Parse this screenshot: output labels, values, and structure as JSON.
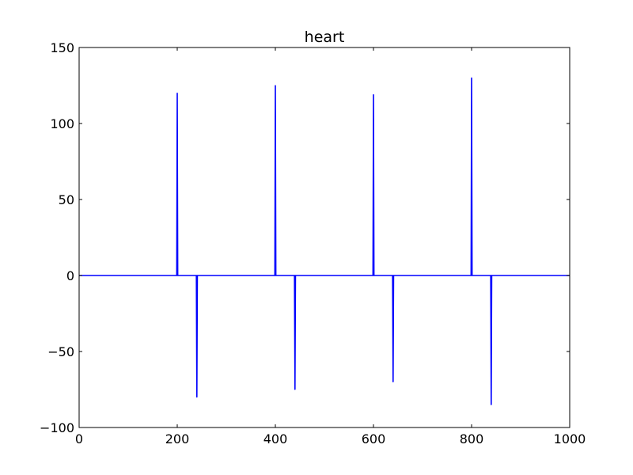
{
  "chart_data": {
    "type": "line",
    "title": "heart",
    "xlabel": "",
    "ylabel": "",
    "xlim": [
      0,
      1000
    ],
    "ylim": [
      -100,
      150
    ],
    "xticks": [
      0,
      200,
      400,
      600,
      800,
      1000
    ],
    "yticks": [
      -100,
      -50,
      0,
      50,
      100,
      150
    ],
    "xtick_labels": [
      "0",
      "200",
      "400",
      "600",
      "800",
      "1000"
    ],
    "ytick_labels": [
      "−100",
      "−50",
      "0",
      "50",
      "100",
      "150"
    ],
    "grid": false,
    "series": [
      {
        "color": "#0000ff",
        "x": [
          0,
          199,
          200,
          201,
          239,
          240,
          241,
          399,
          400,
          401,
          439,
          440,
          441,
          599,
          600,
          601,
          639,
          640,
          641,
          799,
          800,
          801,
          839,
          840,
          841,
          1000
        ],
        "y": [
          0,
          0,
          120,
          0,
          0,
          -80,
          0,
          0,
          125,
          0,
          0,
          -75,
          0,
          0,
          119,
          0,
          0,
          -70,
          0,
          0,
          130,
          0,
          0,
          -85,
          0,
          0
        ]
      }
    ]
  }
}
